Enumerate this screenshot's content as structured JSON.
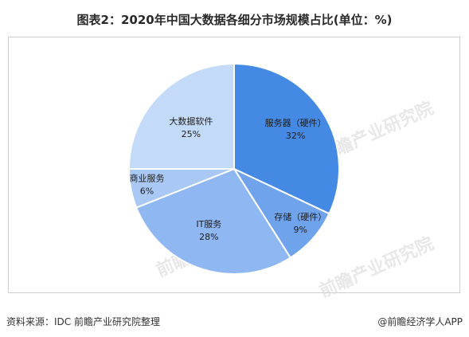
{
  "title": "图表2：2020年中国大数据各细分市场规模占比(单位：%)",
  "watermark": "前瞻产业研究院",
  "footer": {
    "source": "资料来源：IDC 前瞻产业研究院整理",
    "credit": "@前瞻经济学人APP"
  },
  "chart_data": {
    "type": "pie",
    "title": "图表2：2020年中国大数据各细分市场规模占比(单位：%)",
    "unit": "%",
    "slices": [
      {
        "label": "服务器（硬件）",
        "value": 32,
        "display": "32%",
        "color": "#4489e3"
      },
      {
        "label": "存储（硬件）",
        "value": 9,
        "display": "9%",
        "color": "#6fa3ec"
      },
      {
        "label": "IT服务",
        "value": 28,
        "display": "28%",
        "color": "#8fb7f1"
      },
      {
        "label": "商业服务",
        "value": 6,
        "display": "6%",
        "color": "#a9c9f4"
      },
      {
        "label": "大数据软件",
        "value": 25,
        "display": "25%",
        "color": "#c3daf8"
      }
    ]
  }
}
